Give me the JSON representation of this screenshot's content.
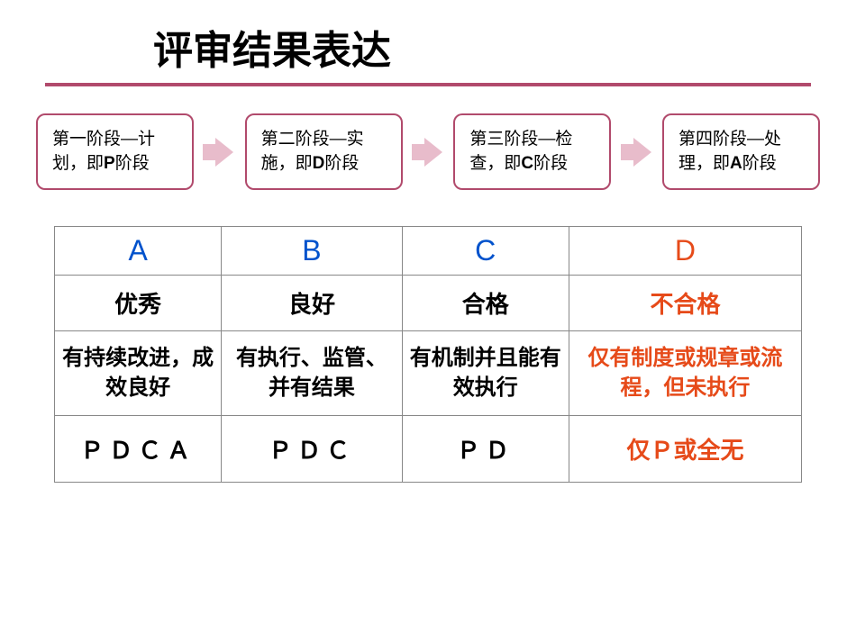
{
  "title": "评审结果表达",
  "colors": {
    "accent": "#b14a6c",
    "arrow": "#e8bccb",
    "blue": "#0052cc",
    "orange": "#e64a19",
    "black": "#000000",
    "border": "#888888"
  },
  "flow": {
    "boxes": [
      {
        "prefix": "第一阶段—计划，即",
        "letter": "P",
        "suffix": "阶段"
      },
      {
        "prefix": "第二阶段—实施，即",
        "letter": "D",
        "suffix": "阶段"
      },
      {
        "prefix": "第三阶段—检查，即",
        "letter": "C",
        "suffix": "阶段"
      },
      {
        "prefix": "第四阶段—处理，即",
        "letter": "A",
        "suffix": "阶段"
      }
    ]
  },
  "table": {
    "headers": [
      {
        "text": "A",
        "color": "blue"
      },
      {
        "text": "B",
        "color": "blue"
      },
      {
        "text": "C",
        "color": "blue"
      },
      {
        "text": "D",
        "color": "orange"
      }
    ],
    "ratings": [
      {
        "text": "优秀",
        "color": "black"
      },
      {
        "text": "良好",
        "color": "black"
      },
      {
        "text": "合格",
        "color": "black"
      },
      {
        "text": "不合格",
        "color": "orange"
      }
    ],
    "descriptions": [
      {
        "text": "有持续改进，成效良好",
        "color": "black"
      },
      {
        "text": "有执行、监管、并有结果",
        "color": "black"
      },
      {
        "text": "有机制并且能有效执行",
        "color": "black"
      },
      {
        "text": "仅有制度或规章或流程，但未执行",
        "color": "orange"
      }
    ],
    "pdca": [
      {
        "text": "ＰＤＣＡ",
        "color": "black"
      },
      {
        "text": "ＰＤＣ",
        "color": "black"
      },
      {
        "text": "ＰＤ",
        "color": "black"
      },
      {
        "text": "仅Ｐ或全无",
        "color": "orange",
        "spacing": "0"
      }
    ]
  }
}
